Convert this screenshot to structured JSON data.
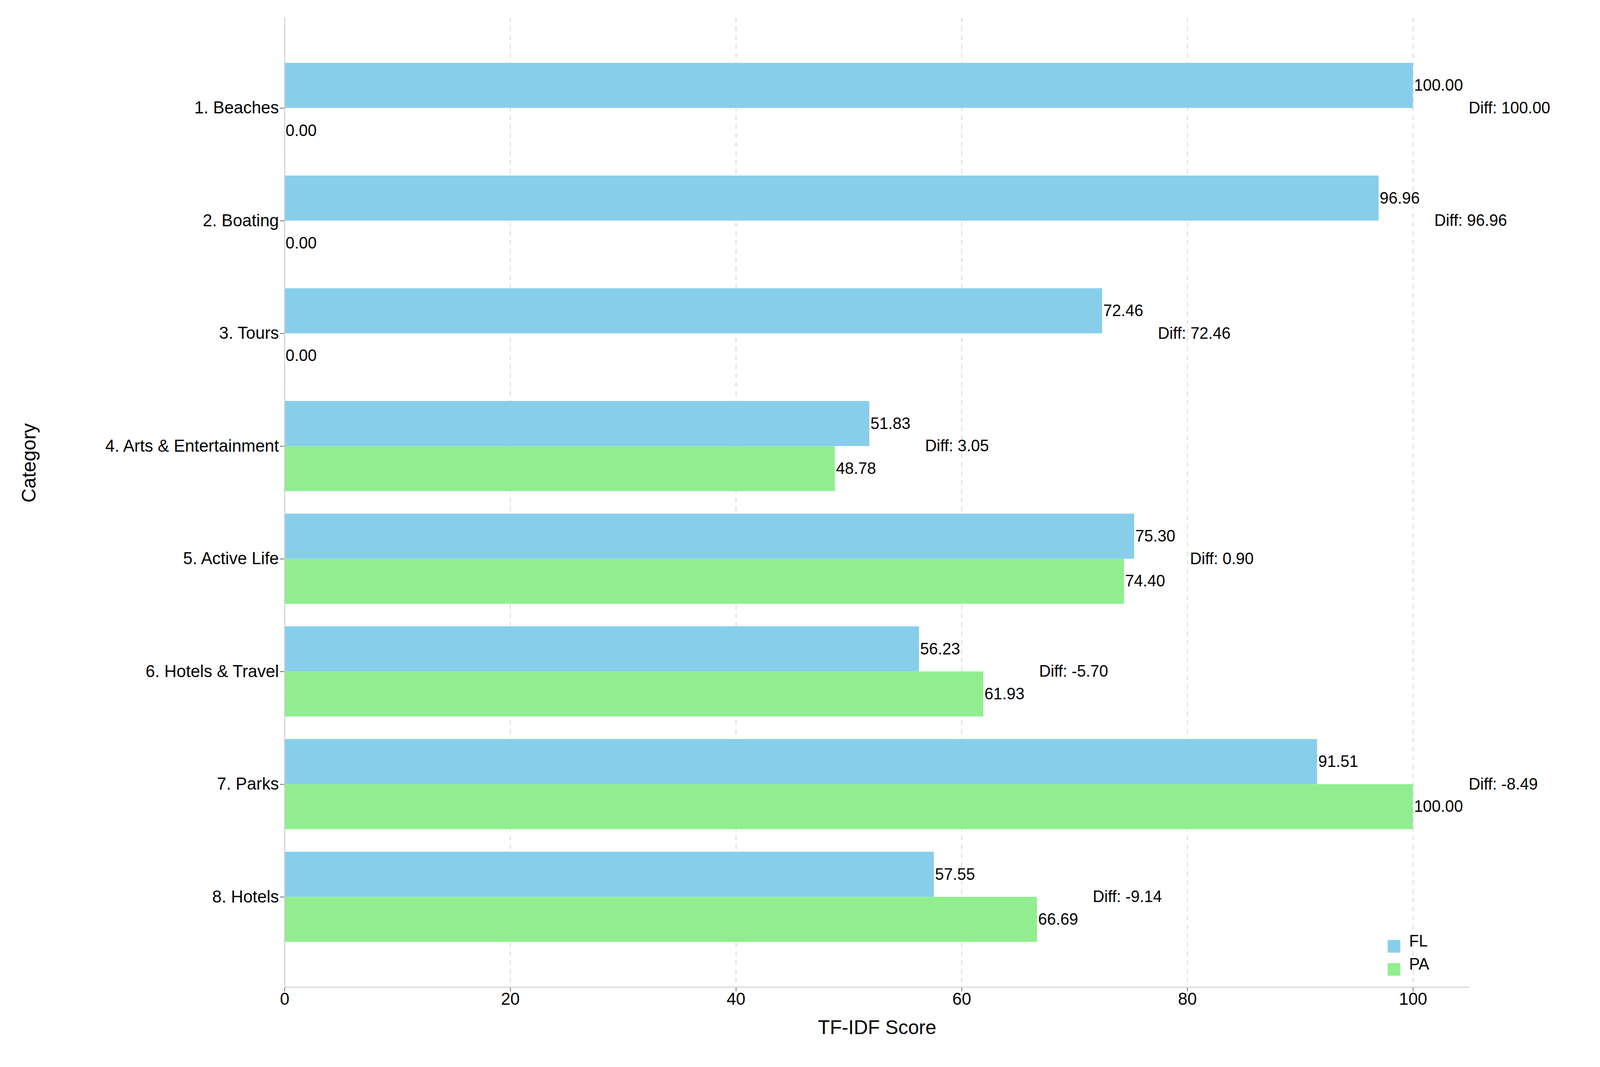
{
  "chart_data": {
    "type": "bar",
    "orientation": "horizontal",
    "categories": [
      "1. Beaches",
      "2. Boating",
      "3. Tours",
      "4. Arts & Entertainment",
      "5. Active Life",
      "6. Hotels & Travel",
      "7. Parks",
      "8. Hotels"
    ],
    "series": [
      {
        "name": "FL",
        "color": "#87ceeb",
        "values": [
          100,
          96.96,
          72.46,
          51.83,
          75.3,
          56.23,
          91.51,
          57.55
        ],
        "value_labels": [
          "100.00",
          "96.96",
          "72.46",
          "51.83",
          "75.30",
          "56.23",
          "91.51",
          "57.55"
        ]
      },
      {
        "name": "PA",
        "color": "#90ee90",
        "values": [
          0,
          0,
          0,
          48.78,
          74.4,
          61.93,
          100,
          66.69
        ],
        "value_labels": [
          "0.00",
          "0.00",
          "0.00",
          "48.78",
          "74.40",
          "61.93",
          "100.00",
          "66.69"
        ]
      }
    ],
    "annotations": [
      "Diff: 100.00",
      "Diff: 96.96",
      "Diff: 72.46",
      "Diff: 3.05",
      "Diff: 0.90",
      "Diff: -5.70",
      "Diff: -8.49",
      "Diff: -9.14"
    ],
    "xlabel": "TF-IDF Score",
    "ylabel": "Category",
    "xlim": [
      0,
      105
    ],
    "xticks": [
      0,
      20,
      40,
      60,
      80,
      100
    ],
    "grid": true,
    "legend": "lower right",
    "data_labels": true
  }
}
